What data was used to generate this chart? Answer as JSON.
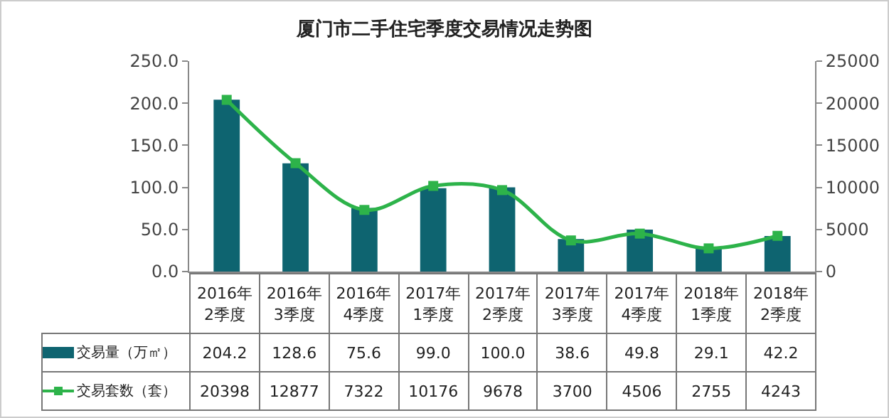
{
  "chart_data": {
    "type": "bar",
    "title": "厦门市二手住宅季度交易情况走势图",
    "categories": [
      "2016年2季度",
      "2016年3季度",
      "2016年4季度",
      "2017年1季度",
      "2017年2季度",
      "2017年3季度",
      "2017年4季度",
      "2018年1季度",
      "2018年2季度"
    ],
    "series": [
      {
        "name": "交易量（万㎡）",
        "color": "#0e6470",
        "values": [
          204.2,
          128.6,
          75.6,
          99.0,
          100.0,
          38.6,
          49.8,
          29.1,
          42.2
        ],
        "value_labels": [
          "204.2",
          "128.6",
          "75.6",
          "99.0",
          "100.0",
          "38.6",
          "49.8",
          "29.1",
          "42.2"
        ]
      },
      {
        "name": "交易套数（套）",
        "type": "line",
        "axis": "y2",
        "color": "#2db34a",
        "values": [
          20398,
          12877,
          7322,
          10176,
          9678,
          3700,
          4506,
          2755,
          4243
        ],
        "value_labels": [
          "20398",
          "12877",
          "7322",
          "10176",
          "9678",
          "3700",
          "4506",
          "2755",
          "4243"
        ]
      }
    ],
    "ylim": [
      0,
      250
    ],
    "yticks": [
      {
        "value": 0,
        "label": "0.0"
      },
      {
        "value": 50,
        "label": "50.0"
      },
      {
        "value": 100,
        "label": "100.0"
      },
      {
        "value": 150,
        "label": "150.0"
      },
      {
        "value": 200,
        "label": "200.0"
      },
      {
        "value": 250,
        "label": "250.0"
      }
    ],
    "y2lim": [
      0,
      25000
    ],
    "y2ticks": [
      0,
      5000,
      10000,
      15000,
      20000,
      25000
    ],
    "grid": false,
    "legend": "bottom left",
    "marker": "square"
  }
}
